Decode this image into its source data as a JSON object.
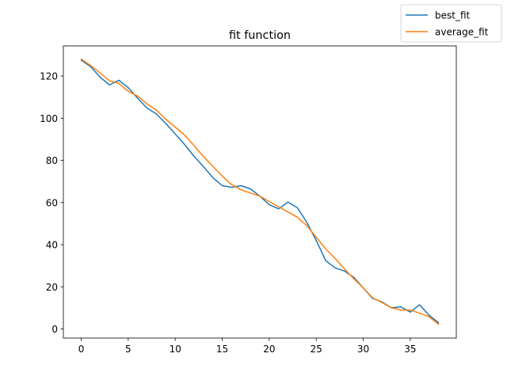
{
  "chart_data": {
    "type": "line",
    "title": "fit function",
    "xlabel": "",
    "ylabel": "",
    "xlim": [
      -1.9,
      39.9
    ],
    "ylim": [
      -4.3,
      134.3
    ],
    "x_ticks": [
      0,
      5,
      10,
      15,
      20,
      25,
      30,
      35
    ],
    "y_ticks": [
      0,
      20,
      40,
      60,
      80,
      100,
      120
    ],
    "grid": false,
    "legend_position": "upper right (figure)",
    "x": [
      0,
      1,
      2,
      3,
      4,
      5,
      6,
      7,
      8,
      9,
      10,
      11,
      12,
      13,
      14,
      15,
      16,
      17,
      18,
      19,
      20,
      21,
      22,
      23,
      24,
      25,
      26,
      27,
      28,
      29,
      30,
      31,
      32,
      33,
      34,
      35,
      36,
      37,
      38
    ],
    "series": [
      {
        "name": "best_fit",
        "color": "#1f77b4",
        "values": [
          127.5,
          124.5,
          119.5,
          115.8,
          118.0,
          114.5,
          109.5,
          104.8,
          102.0,
          97.5,
          92.5,
          87.5,
          82.0,
          77.0,
          71.8,
          68.0,
          67.2,
          68.0,
          66.5,
          63.0,
          59.0,
          57.0,
          60.2,
          57.5,
          50.5,
          42.0,
          32.5,
          29.0,
          27.5,
          24.5,
          19.5,
          14.5,
          12.8,
          10.0,
          10.5,
          8.0,
          11.5,
          6.5,
          3.0
        ]
      },
      {
        "name": "average_fit",
        "color": "#ff7f0e",
        "values": [
          128.0,
          125.0,
          121.5,
          117.8,
          116.5,
          112.8,
          110.5,
          106.8,
          103.8,
          99.5,
          95.8,
          92.0,
          87.0,
          81.8,
          77.2,
          72.5,
          68.5,
          66.0,
          64.5,
          63.0,
          60.5,
          58.0,
          55.5,
          53.0,
          49.0,
          43.5,
          38.0,
          33.5,
          28.5,
          23.8,
          19.5,
          14.8,
          12.5,
          10.0,
          9.0,
          9.0,
          7.5,
          5.8,
          2.3
        ]
      }
    ]
  }
}
